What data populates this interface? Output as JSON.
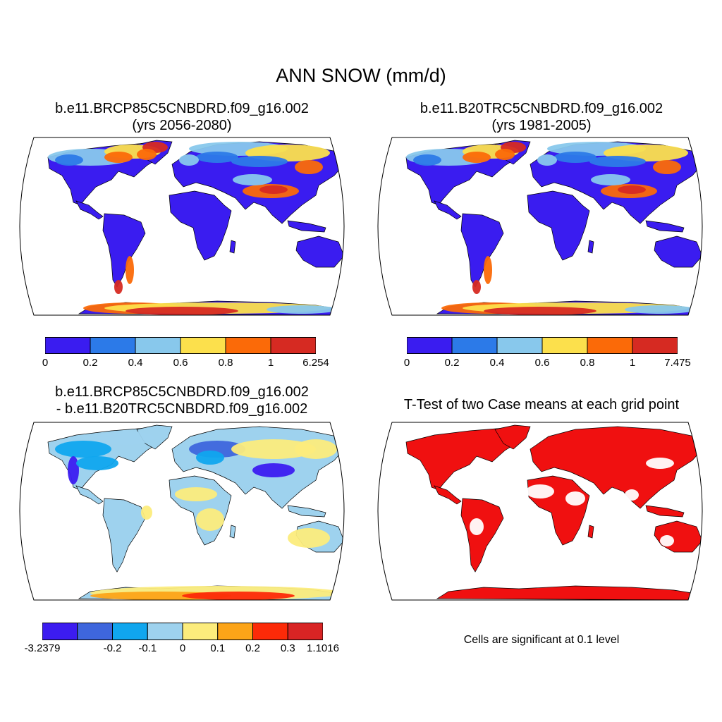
{
  "title": "ANN SNOW (mm/d)",
  "colors": {
    "snow": [
      "#3a1cf0",
      "#2c7ae8",
      "#88c8ec",
      "#fce04c",
      "#fb6a08",
      "#d62a22"
    ],
    "diff": [
      "#3c1cf0",
      "#3e66dc",
      "#10a6ee",
      "#9ed2ee",
      "#fcec7c",
      "#fca418",
      "#fc2a08",
      "#d82424"
    ],
    "signif": "#f01010",
    "ocean": "#ffffff",
    "coast": "#000000"
  },
  "panels": [
    {
      "id": "case1",
      "title_line1": "b.e11.BRCP85C5CNBDRD.f09_g16.002",
      "title_line2": "(yrs 2056-2080)",
      "colorbar_labels": [
        "0",
        "0.2",
        "0.4",
        "0.6",
        "0.8",
        "1",
        "6.254"
      ]
    },
    {
      "id": "case2",
      "title_line1": "b.e11.B20TRC5CNBDRD.f09_g16.002",
      "title_line2": "(yrs 1981-2005)",
      "colorbar_labels": [
        "0",
        "0.2",
        "0.4",
        "0.6",
        "0.8",
        "1",
        "7.475"
      ]
    },
    {
      "id": "difference",
      "title_line1": "b.e11.BRCP85C5CNBDRD.f09_g16.002",
      "title_line2": "- b.e11.B20TRC5CNBDRD.f09_g16.002",
      "colorbar_labels": [
        "-3.2379",
        "-0.2",
        "-0.1",
        "0",
        "0.1",
        "0.2",
        "0.3",
        "1.1016"
      ]
    },
    {
      "id": "ttest",
      "title_line1": "T-Test of two Case means at each grid point",
      "note": "Cells are significant at 0.1 level"
    }
  ]
}
